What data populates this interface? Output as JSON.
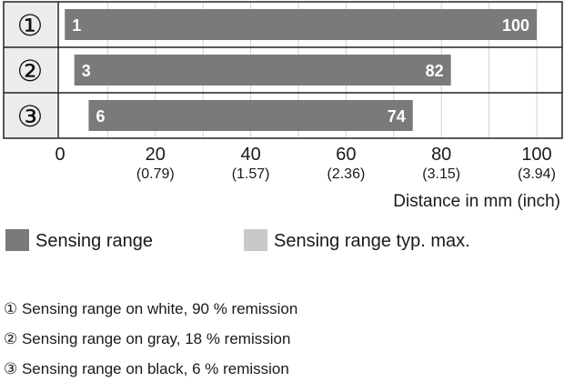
{
  "chart_data": {
    "type": "bar",
    "orientation": "horizontal-range",
    "categories": [
      "①",
      "②",
      "③"
    ],
    "series": [
      {
        "name": "Sensing range",
        "ranges": [
          [
            1,
            100
          ],
          [
            3,
            82
          ],
          [
            6,
            74
          ]
        ],
        "color": "#7a7a7a"
      }
    ],
    "start_labels": [
      "1",
      "3",
      "6"
    ],
    "end_labels": [
      "100",
      "82",
      "74"
    ],
    "xlim": [
      0,
      100
    ],
    "grid": true,
    "x_ticks": [
      {
        "value": 0,
        "label": "0",
        "sub": ""
      },
      {
        "value": 20,
        "label": "20",
        "sub": "(0.79)"
      },
      {
        "value": 40,
        "label": "40",
        "sub": "(1.57)"
      },
      {
        "value": 60,
        "label": "60",
        "sub": "(2.36)"
      },
      {
        "value": 80,
        "label": "80",
        "sub": "(3.15)"
      },
      {
        "value": 100,
        "label": "100",
        "sub": "(3.94)"
      }
    ],
    "xlabel": "Distance in mm (inch)",
    "legend": [
      {
        "label": "Sensing range",
        "color": "#7a7a7a"
      },
      {
        "label": "Sensing range typ. max.",
        "color": "#c8c8c8"
      }
    ],
    "legend_position": "bottom",
    "colors": {
      "bar": "#7a7a7a",
      "bar_typ_max": "#c8c8c8",
      "grid": "#d2d2d2",
      "frame": "#222222",
      "label_cell": "#ececec",
      "bar_text": "#ffffff"
    }
  },
  "footnotes": [
    "① Sensing range on white, 90 % remission",
    "② Sensing range on gray, 18 % remission",
    "③ Sensing range on black, 6 % remission"
  ]
}
